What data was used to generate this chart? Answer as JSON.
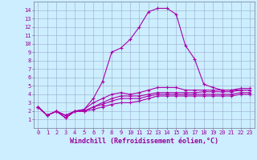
{
  "xlabel": "Windchill (Refroidissement éolien,°C)",
  "x_values": [
    0,
    1,
    2,
    3,
    4,
    5,
    6,
    7,
    8,
    9,
    10,
    11,
    12,
    13,
    14,
    15,
    16,
    17,
    18,
    19,
    20,
    21,
    22,
    23
  ],
  "series": [
    [
      2.5,
      1.5,
      2.0,
      1.2,
      2.0,
      2.2,
      3.5,
      5.5,
      9.0,
      9.5,
      10.5,
      12.0,
      13.8,
      14.2,
      14.2,
      13.5,
      9.8,
      8.2,
      5.2,
      4.8,
      4.5,
      4.5,
      4.5,
      4.5
    ],
    [
      2.5,
      1.5,
      2.0,
      1.5,
      2.0,
      2.2,
      3.0,
      3.5,
      4.0,
      4.2,
      4.0,
      4.2,
      4.5,
      4.8,
      4.8,
      4.8,
      4.5,
      4.5,
      4.5,
      4.5,
      4.5,
      4.5,
      4.7,
      4.7
    ],
    [
      2.5,
      1.5,
      2.0,
      1.5,
      2.0,
      2.0,
      2.5,
      3.0,
      3.5,
      3.8,
      3.8,
      3.8,
      4.0,
      4.2,
      4.2,
      4.2,
      4.2,
      4.2,
      4.3,
      4.3,
      4.3,
      4.3,
      4.5,
      4.5
    ],
    [
      2.5,
      1.5,
      2.0,
      1.2,
      2.0,
      2.0,
      2.5,
      2.8,
      3.2,
      3.5,
      3.5,
      3.5,
      3.8,
      4.0,
      4.0,
      4.0,
      4.0,
      4.0,
      4.0,
      4.0,
      4.0,
      4.0,
      4.2,
      4.2
    ],
    [
      2.5,
      1.5,
      2.0,
      1.2,
      2.0,
      2.0,
      2.2,
      2.5,
      2.8,
      3.0,
      3.0,
      3.2,
      3.5,
      3.8,
      3.8,
      3.8,
      3.8,
      3.8,
      3.8,
      3.8,
      3.8,
      3.8,
      4.0,
      4.0
    ]
  ],
  "line_color": "#aa00aa",
  "marker": "+",
  "markersize": 3,
  "linewidth": 0.8,
  "bg_color": "#cceeff",
  "grid_color": "#99aacc",
  "ylim": [
    0,
    15
  ],
  "xlim": [
    -0.5,
    23.5
  ],
  "yticks": [
    1,
    2,
    3,
    4,
    5,
    6,
    7,
    8,
    9,
    10,
    11,
    12,
    13,
    14
  ],
  "xticks": [
    0,
    1,
    2,
    3,
    4,
    5,
    6,
    7,
    8,
    9,
    10,
    11,
    12,
    13,
    14,
    15,
    16,
    17,
    18,
    19,
    20,
    21,
    22,
    23
  ],
  "tick_fontsize": 5.0,
  "xlabel_fontsize": 6.0,
  "label_color": "#990099"
}
